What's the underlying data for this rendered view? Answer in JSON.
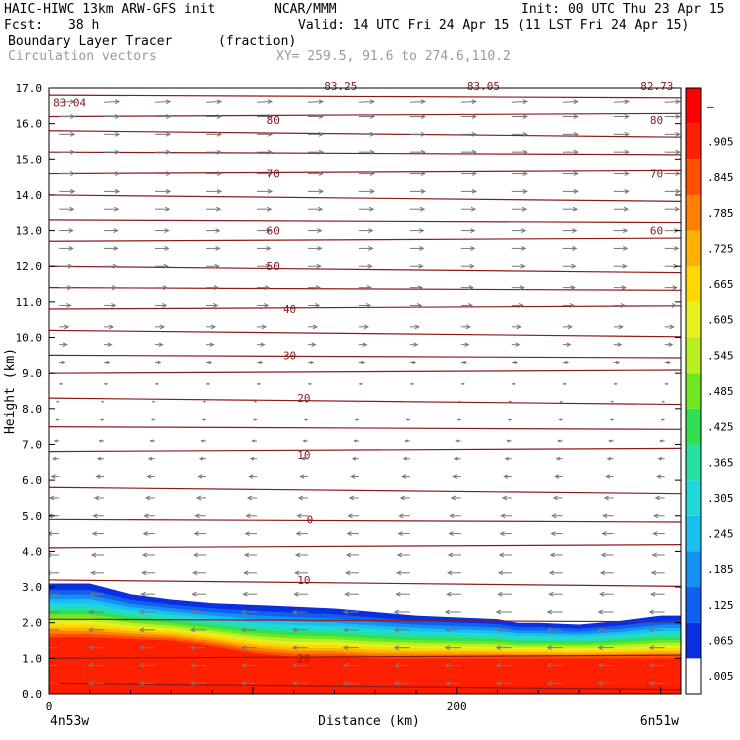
{
  "header": {
    "model": "HAIC-HIWC 13km ARW-GFS init",
    "org": "NCAR/MMM",
    "init": "Init: 00 UTC Thu 23 Apr 15",
    "fcst_label": "Fcst:",
    "fcst_value": "38 h",
    "valid": "Valid: 14 UTC Fri 24 Apr 15 (11 LST Fri 24 Apr 15)",
    "field": "Boundary Layer Tracer",
    "units": "(fraction)",
    "vectors": "Circulation vectors",
    "xy": "XY= 259.5, 91.6 to 274.6,110.2"
  },
  "chart_data": {
    "type": "heatmap",
    "title": "Boundary Layer Tracer",
    "xlabel": "Distance (km)",
    "ylabel": "Height (km)",
    "xlim": [
      0,
      310
    ],
    "ylim": [
      0,
      17
    ],
    "x_ticks": [
      {
        "value": 0,
        "label": "0"
      },
      {
        "value": 200,
        "label": "200"
      }
    ],
    "x_end_labels": {
      "left": "4n53w",
      "right": "6n51w"
    },
    "y_ticks": [
      "0.0",
      "1.0",
      "2.0",
      "3.0",
      "4.0",
      "5.0",
      "6.0",
      "7.0",
      "8.0",
      "9.0",
      "10.0",
      "11.0",
      "12.0",
      "13.0",
      "14.0",
      "15.0",
      "16.0",
      "17.0"
    ],
    "colorbar": {
      "labels": [
        ".005",
        ".065",
        ".125",
        ".185",
        ".245",
        ".305",
        ".365",
        ".425",
        ".485",
        ".545",
        ".605",
        ".665",
        ".725",
        ".785",
        ".845",
        ".905",
        "–"
      ],
      "colors": [
        "#ffffff",
        "#0a2fe0",
        "#1060f0",
        "#1590f2",
        "#18bff0",
        "#20d8d8",
        "#25e0a0",
        "#30e050",
        "#70e820",
        "#b8f020",
        "#e8f020",
        "#ffd800",
        "#ffb000",
        "#ff8000",
        "#ff5000",
        "#ff2000",
        "#ff0000"
      ]
    },
    "tracer_profile": {
      "x": [
        0,
        20,
        40,
        60,
        80,
        100,
        120,
        140,
        160,
        180,
        200,
        220,
        230,
        240,
        260,
        280,
        300,
        310
      ],
      "top_height": [
        3.1,
        3.1,
        2.8,
        2.65,
        2.55,
        2.5,
        2.45,
        2.4,
        2.3,
        2.2,
        2.15,
        2.1,
        2.0,
        2.0,
        1.95,
        2.05,
        2.2,
        2.2
      ],
      "core_height": [
        1.6,
        1.6,
        1.55,
        1.5,
        1.35,
        1.15,
        1.05,
        1.05,
        1.0,
        1.0,
        1.0,
        1.0,
        1.0,
        1.0,
        1.0,
        1.0,
        1.0,
        1.0
      ]
    },
    "contours": {
      "name": "temperature",
      "labels": [
        {
          "text": "80",
          "x": 110,
          "y": 16.1
        },
        {
          "text": "80",
          "x": 298,
          "y": 16.1
        },
        {
          "text": "70",
          "x": 110,
          "y": 14.6
        },
        {
          "text": "70",
          "x": 298,
          "y": 14.6
        },
        {
          "text": "60",
          "x": 110,
          "y": 13.0
        },
        {
          "text": "60",
          "x": 298,
          "y": 13.0
        },
        {
          "text": "50",
          "x": 110,
          "y": 12.0
        },
        {
          "text": "40",
          "x": 118,
          "y": 10.8
        },
        {
          "text": "30",
          "x": 118,
          "y": 9.5
        },
        {
          "text": "20",
          "x": 125,
          "y": 8.3
        },
        {
          "text": "10",
          "x": 125,
          "y": 6.7
        },
        {
          "text": "0",
          "x": 128,
          "y": 4.9
        },
        {
          "text": "10",
          "x": 125,
          "y": 3.2
        },
        {
          "text": "20",
          "x": 125,
          "y": 1.0
        }
      ],
      "top_labels": [
        {
          "text": "83.04",
          "x": 2,
          "y": 16.6
        },
        {
          "text": "83.25",
          "x": 135,
          "y": 17.05
        },
        {
          "text": "83.05",
          "x": 205,
          "y": 17.05
        },
        {
          "text": "82.73",
          "x": 290,
          "y": 17.05
        }
      ],
      "levels": [
        0.3,
        1.0,
        2.1,
        3.2,
        4.1,
        4.9,
        5.8,
        6.8,
        7.5,
        8.3,
        9.0,
        9.5,
        10.2,
        10.8,
        11.4,
        12.0,
        12.7,
        13.3,
        14.0,
        14.6,
        15.2,
        15.8,
        16.2,
        16.8
      ]
    },
    "vectors": {
      "x": [
        5,
        27,
        52,
        77,
        102,
        127,
        152,
        177,
        202,
        227,
        252,
        277,
        302
      ],
      "levels": [
        {
          "y": 16.6,
          "u": 1.0,
          "v": 0.05
        },
        {
          "y": 16.2,
          "u": 1.0,
          "v": 0.0
        },
        {
          "y": 15.7,
          "u": 1.0,
          "v": 0.0
        },
        {
          "y": 15.2,
          "u": 1.0,
          "v": 0.0
        },
        {
          "y": 14.6,
          "u": 1.0,
          "v": 0.0
        },
        {
          "y": 14.1,
          "u": 1.0,
          "v": 0.0
        },
        {
          "y": 13.6,
          "u": 0.95,
          "v": 0.0
        },
        {
          "y": 13.0,
          "u": 0.9,
          "v": 0.0
        },
        {
          "y": 12.5,
          "u": 0.9,
          "v": 0.0
        },
        {
          "y": 12.0,
          "u": 0.85,
          "v": 0.0
        },
        {
          "y": 11.4,
          "u": 0.8,
          "v": 0.0
        },
        {
          "y": 10.9,
          "u": 0.75,
          "v": 0.0
        },
        {
          "y": 10.3,
          "u": 0.6,
          "v": 0.0
        },
        {
          "y": 9.8,
          "u": 0.5,
          "v": 0.0
        },
        {
          "y": 9.3,
          "u": 0.35,
          "v": 0.0
        },
        {
          "y": 8.7,
          "u": 0.2,
          "v": 0.0
        },
        {
          "y": 8.2,
          "u": -0.15,
          "v": 0.0
        },
        {
          "y": 7.7,
          "u": -0.2,
          "v": 0.0
        },
        {
          "y": 7.1,
          "u": -0.3,
          "v": 0.0
        },
        {
          "y": 6.6,
          "u": -0.4,
          "v": 0.0
        },
        {
          "y": 6.1,
          "u": -0.5,
          "v": 0.0
        },
        {
          "y": 5.5,
          "u": -0.6,
          "v": 0.0
        },
        {
          "y": 5.0,
          "u": -0.7,
          "v": 0.0
        },
        {
          "y": 4.5,
          "u": -0.75,
          "v": 0.0
        },
        {
          "y": 3.9,
          "u": -0.8,
          "v": 0.0
        },
        {
          "y": 3.4,
          "u": -0.85,
          "v": 0.0
        },
        {
          "y": 2.8,
          "u": -0.9,
          "v": 0.0
        },
        {
          "y": 2.3,
          "u": -1.0,
          "v": 0.0
        },
        {
          "y": 1.8,
          "u": -1.0,
          "v": 0.0
        },
        {
          "y": 1.3,
          "u": -1.0,
          "v": 0.0
        },
        {
          "y": 0.8,
          "u": -1.0,
          "v": 0.0
        },
        {
          "y": 0.3,
          "u": -1.0,
          "v": 0.0
        }
      ]
    }
  }
}
